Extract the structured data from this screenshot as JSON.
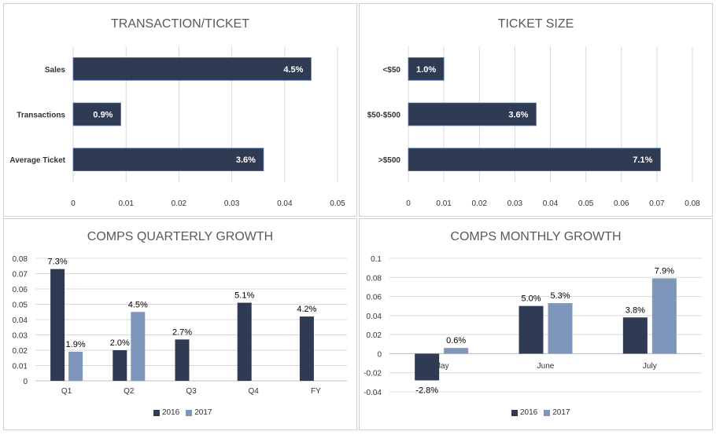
{
  "colors": {
    "series_2016": "#2e3b53",
    "series_2017": "#7f96bb",
    "grid": "#d9d9d9",
    "axis_text": "#333333",
    "title_text": "#595959"
  },
  "chart_data": [
    {
      "type": "bar",
      "orientation": "horizontal",
      "title": "TRANSACTION/TICKET",
      "categories": [
        "Sales",
        "Transactions",
        "Average Ticket"
      ],
      "values": [
        0.045,
        0.009,
        0.036
      ],
      "data_labels": [
        "4.5%",
        "0.9%",
        "3.6%"
      ],
      "xlim": [
        0,
        0.05
      ],
      "xticks": [
        "0",
        "0.01",
        "0.02",
        "0.03",
        "0.04",
        "0.05"
      ],
      "grid": true
    },
    {
      "type": "bar",
      "orientation": "horizontal",
      "title": "TICKET SIZE",
      "categories": [
        "<$50",
        "$50-$500",
        ">$500"
      ],
      "values": [
        0.01,
        0.036,
        0.071
      ],
      "data_labels": [
        "1.0%",
        "3.6%",
        "7.1%"
      ],
      "xlim": [
        0,
        0.08
      ],
      "xticks": [
        "0",
        "0.01",
        "0.02",
        "0.03",
        "0.04",
        "0.05",
        "0.06",
        "0.07",
        "0.08"
      ],
      "grid": true
    },
    {
      "type": "bar",
      "orientation": "vertical",
      "title": "COMPS QUARTERLY GROWTH",
      "categories": [
        "Q1",
        "Q2",
        "Q3",
        "Q4",
        "FY"
      ],
      "series": [
        {
          "name": "2016",
          "values": [
            0.073,
            0.02,
            0.027,
            0.051,
            0.042
          ],
          "labels": [
            "7.3%",
            "2.0%",
            "2.7%",
            "5.1%",
            "4.2%"
          ]
        },
        {
          "name": "2017",
          "values": [
            0.019,
            0.045,
            null,
            null,
            null
          ],
          "labels": [
            "1.9%",
            "4.5%",
            "",
            "",
            ""
          ]
        }
      ],
      "ylim": [
        0,
        0.08
      ],
      "yticks": [
        "0",
        "0.01",
        "0.02",
        "0.03",
        "0.04",
        "0.05",
        "0.06",
        "0.07",
        "0.08"
      ],
      "legend": "bottom",
      "grid": true
    },
    {
      "type": "bar",
      "orientation": "vertical",
      "title": "COMPS MONTHLY GROWTH",
      "categories": [
        "May",
        "June",
        "July"
      ],
      "series": [
        {
          "name": "2016",
          "values": [
            -0.028,
            0.05,
            0.038
          ],
          "labels": [
            "-2.8%",
            "5.0%",
            "3.8%"
          ]
        },
        {
          "name": "2017",
          "values": [
            0.006,
            0.053,
            0.079
          ],
          "labels": [
            "0.6%",
            "5.3%",
            "7.9%"
          ]
        }
      ],
      "ylim": [
        -0.04,
        0.1
      ],
      "yticks": [
        "-0.04",
        "-0.02",
        "0",
        "0.02",
        "0.04",
        "0.06",
        "0.08",
        "0.1"
      ],
      "legend": "bottom",
      "grid": true
    }
  ]
}
